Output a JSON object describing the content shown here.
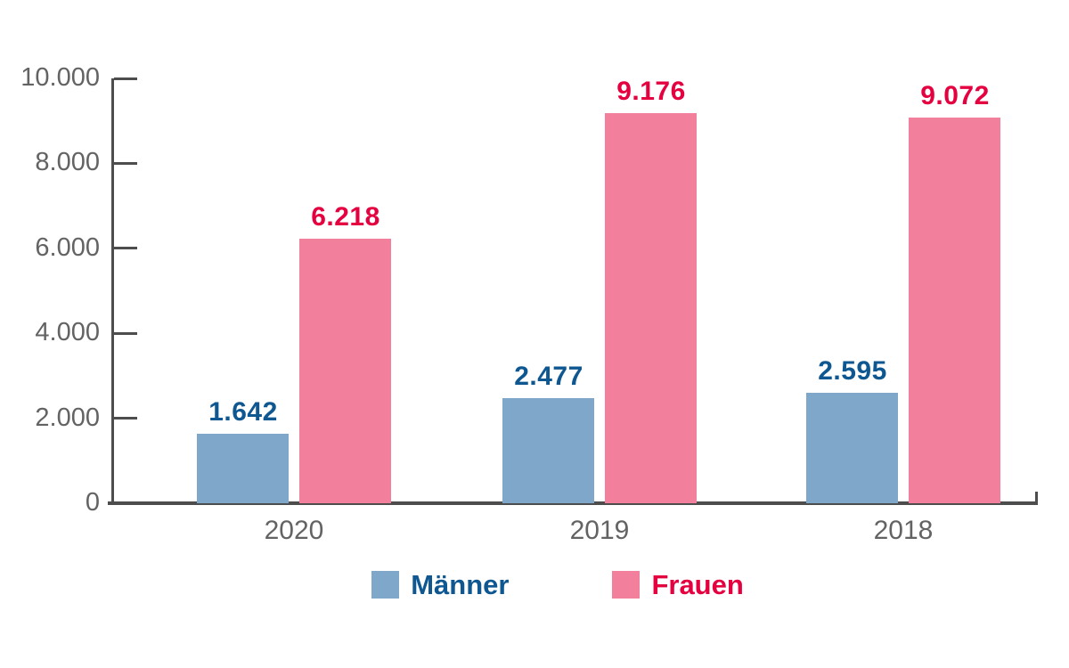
{
  "chart_data": {
    "type": "bar",
    "categories": [
      "2020",
      "2019",
      "2018"
    ],
    "series": [
      {
        "name": "Männer",
        "values": [
          1642,
          2477,
          2595
        ],
        "value_labels": [
          "1.642",
          "2.477",
          "2.595"
        ],
        "bar_color": "#7fa7c9",
        "label_color": "#0e5791"
      },
      {
        "name": "Frauen",
        "values": [
          6218,
          9176,
          9072
        ],
        "value_labels": [
          "6.218",
          "9.176",
          "9.072"
        ],
        "bar_color": "#f2809d",
        "label_color": "#e50040"
      }
    ],
    "title": "",
    "xlabel": "",
    "ylabel": "",
    "ylim": [
      0,
      10000
    ],
    "y_ticks": [
      {
        "value": 10000,
        "label": "10.000"
      },
      {
        "value": 8000,
        "label": "8.000"
      },
      {
        "value": 6000,
        "label": "6.000"
      },
      {
        "value": 4000,
        "label": "4.000"
      },
      {
        "value": 2000,
        "label": "2.000"
      },
      {
        "value": 0,
        "label": "0"
      }
    ],
    "grid": false,
    "legend_position": "bottom",
    "colors": {
      "axis": "#4d4d4d",
      "tick_text": "#636363"
    }
  }
}
